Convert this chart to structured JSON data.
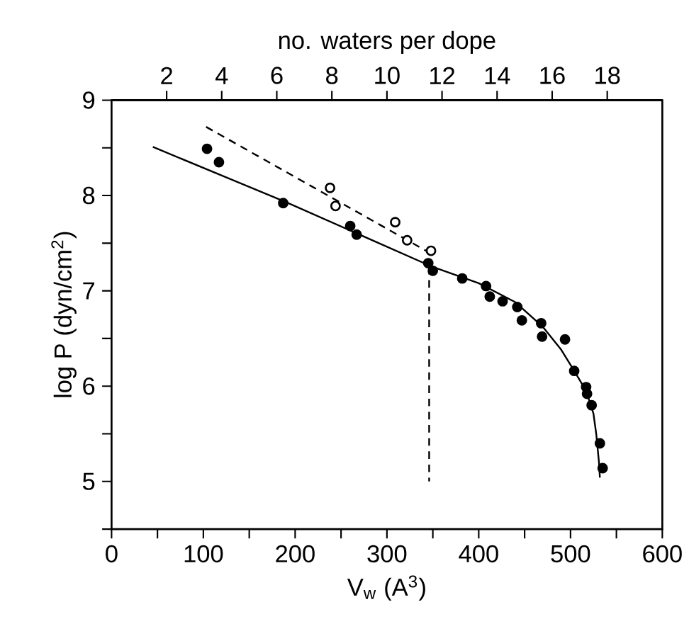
{
  "chart_data": {
    "type": "scatter",
    "xlabel": "V$_{w}$ (A$^{3}$)",
    "ylabel": "log P (dyn/cm$^{2}$)",
    "x2label": "no. waters per dope",
    "xlim": [
      0,
      600
    ],
    "xticks": [
      0,
      {
        "value": 50,
        "label": null
      },
      100,
      {
        "value": 150,
        "label": null
      },
      200,
      {
        "value": 250,
        "label": null
      },
      300,
      {
        "value": 350,
        "label": null
      },
      400,
      {
        "value": 450,
        "label": null
      },
      500,
      {
        "value": 550,
        "label": null
      },
      600
    ],
    "ylim": [
      4.5,
      9
    ],
    "yticks": [
      {
        "value": 4.5,
        "label": null
      },
      5,
      {
        "value": 5.5,
        "label": null
      },
      6,
      {
        "value": 6.5,
        "label": null
      },
      7,
      {
        "value": 7.5,
        "label": null
      },
      8,
      {
        "value": 8.5,
        "label": null
      },
      9
    ],
    "x2lim": [
      0,
      20
    ],
    "x2ticks": [
      2,
      4,
      6,
      8,
      10,
      12,
      14,
      16,
      18
    ],
    "grid": false,
    "series": [
      {
        "marker": "circle",
        "color": "#000000",
        "x": [
          104,
          117,
          187,
          260,
          267,
          345,
          350,
          382,
          408,
          412,
          426,
          442,
          447,
          468,
          469,
          494,
          504,
          517,
          518,
          523,
          532,
          535
        ],
        "values": [
          8.49,
          8.35,
          7.92,
          7.68,
          7.59,
          7.29,
          7.21,
          7.13,
          7.05,
          6.94,
          6.89,
          6.83,
          6.69,
          6.66,
          6.52,
          6.49,
          6.16,
          5.99,
          5.92,
          5.8,
          5.4,
          5.14
        ]
      },
      {
        "type": "scatter",
        "marker": "circle",
        "color": "#ffffff",
        "x": [
          238,
          244,
          309,
          322,
          348
        ],
        "values": [
          8.08,
          7.89,
          7.72,
          7.53,
          7.42
        ]
      },
      {
        "type": "line",
        "marker": "none",
        "line_style": "solid",
        "color": "#000000",
        "x": [
          45,
          190,
          350,
          400,
          440,
          470,
          490,
          504,
          517,
          525,
          528,
          531,
          532
        ],
        "values": [
          8.51,
          7.93,
          7.25,
          7.08,
          6.88,
          6.62,
          6.38,
          6.16,
          5.95,
          5.71,
          5.5,
          5.2,
          5.04
        ]
      },
      {
        "type": "line",
        "marker": "none",
        "line_style": "dashed",
        "color": "#000000",
        "x": [
          103,
          350
        ],
        "values": [
          8.72,
          7.38
        ]
      },
      {
        "type": "line",
        "marker": "none",
        "line_style": "dashed",
        "color": "#000000",
        "x": [
          346,
          346
        ],
        "values": [
          7.25,
          5.0
        ]
      }
    ]
  }
}
